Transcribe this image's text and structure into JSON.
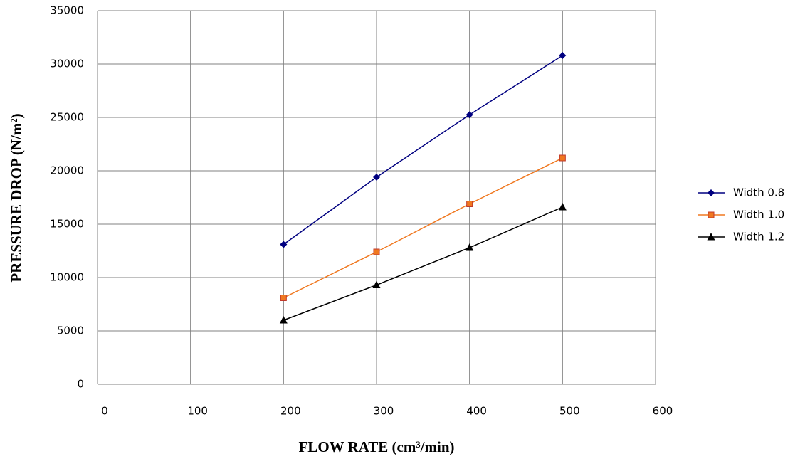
{
  "chart_data": {
    "type": "line",
    "x": [
      200,
      300,
      400,
      500
    ],
    "series": [
      {
        "name": "Width 0.8",
        "color": "#000080",
        "marker": "diamond",
        "values": [
          13100,
          19400,
          25250,
          30800
        ]
      },
      {
        "name": "Width 1.0",
        "color": "#f07820",
        "marker": "square",
        "values": [
          8100,
          12400,
          16900,
          21200
        ]
      },
      {
        "name": "Width 1.2",
        "color": "#000000",
        "marker": "triangle",
        "values": [
          6000,
          9300,
          12800,
          16600
        ]
      }
    ],
    "xlabel": "FLOW RATE (cm³/min)",
    "ylabel": "PRESSURE DROP (N/m²)",
    "xlim": [
      0,
      600
    ],
    "xticks": [
      0,
      100,
      200,
      300,
      400,
      500,
      600
    ],
    "ylim": [
      0,
      35000
    ],
    "yticks": [
      0,
      5000,
      10000,
      15000,
      20000,
      25000,
      30000,
      35000
    ],
    "grid": true,
    "legend": "right"
  }
}
